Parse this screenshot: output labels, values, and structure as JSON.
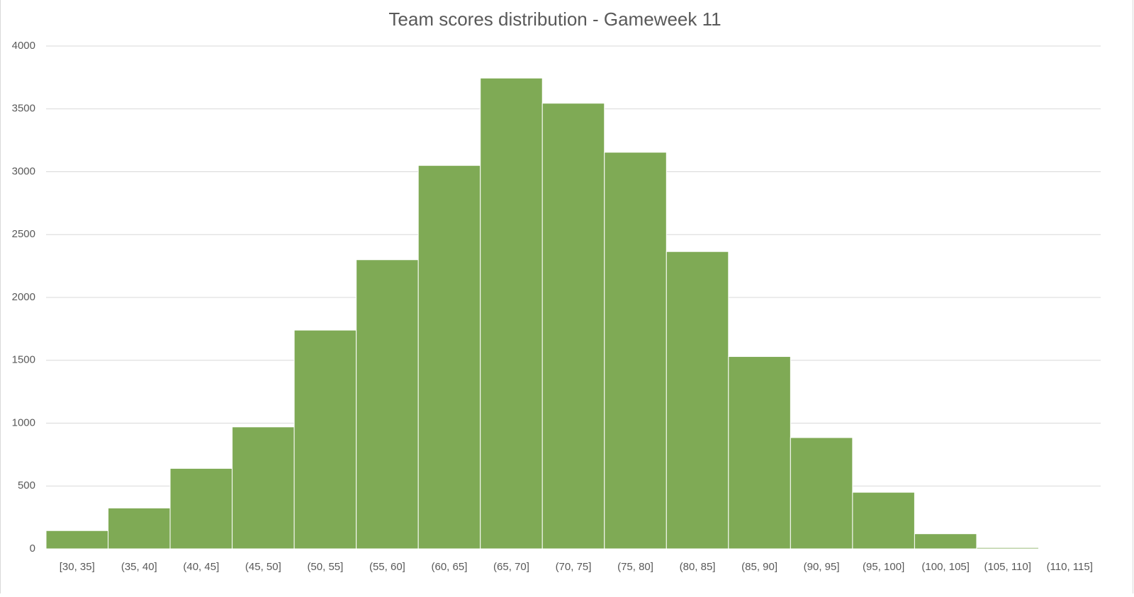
{
  "chart_data": {
    "type": "bar",
    "title": "Team scores distribution - Gameweek 11",
    "categories": [
      "[30, 35]",
      "(35, 40]",
      "(40, 45]",
      "(45, 50]",
      "(50, 55]",
      "(55, 60]",
      "(60, 65]",
      "(65, 70]",
      "(70, 75]",
      "(75, 80]",
      "(80, 85]",
      "(85, 90]",
      "(90, 95]",
      "(95, 100]",
      "(100, 105]",
      "(105, 110]",
      "(110, 115]"
    ],
    "values": [
      145,
      325,
      640,
      970,
      1740,
      2300,
      3050,
      3745,
      3545,
      3155,
      2365,
      1530,
      885,
      450,
      120,
      10,
      2
    ],
    "color": "#7faa55",
    "ylim": [
      0,
      4000
    ],
    "yticks": [
      0,
      500,
      1000,
      1500,
      2000,
      2500,
      3000,
      3500,
      4000
    ],
    "grid": true
  }
}
